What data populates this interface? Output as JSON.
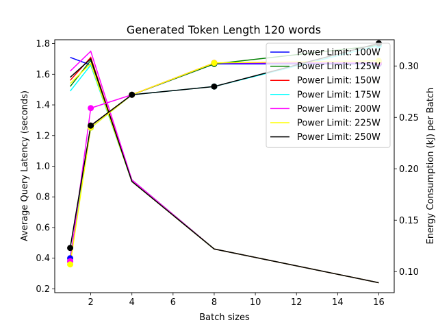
{
  "chart_data": {
    "type": "line",
    "title": "Generated Token Length 120 words",
    "xlabel": "Batch sizes",
    "ylabel": "Average Query Latency (seconds)",
    "y2label": "Energy Consumption (kJ) per Batch",
    "x": [
      1,
      2,
      4,
      8,
      16
    ],
    "xlim": [
      0.25,
      16.75
    ],
    "ylim": [
      0.175,
      1.825
    ],
    "y2lim": [
      0.0795,
      0.3255
    ],
    "xticks": [
      2,
      4,
      6,
      8,
      10,
      12,
      14,
      16
    ],
    "yticks": [
      0.2,
      0.4,
      0.6,
      0.8,
      1.0,
      1.2,
      1.4,
      1.6,
      1.8
    ],
    "y2ticks": [
      0.1,
      0.15,
      0.2,
      0.25,
      0.3
    ],
    "legend_position": "top-right",
    "grid": false,
    "series": [
      {
        "name": "Power Limit: 100W",
        "color": "#0000ff",
        "latency": [
          1.71,
          1.66,
          0.91,
          0.46,
          0.24
        ],
        "energy": [
          0.113,
          0.24,
          0.272,
          0.302,
          0.302
        ]
      },
      {
        "name": "Power Limit: 125W",
        "color": "#008000",
        "latency": [
          1.52,
          1.69,
          0.91,
          0.46,
          0.24
        ],
        "energy": [
          0.11,
          0.242,
          0.272,
          0.302,
          0.32
        ]
      },
      {
        "name": "Power Limit: 150W",
        "color": "#ff0000",
        "latency": [
          1.56,
          1.71,
          0.9,
          0.46,
          0.24
        ],
        "energy": [
          0.11,
          0.242,
          0.272,
          0.303,
          0.303
        ]
      },
      {
        "name": "Power Limit: 175W",
        "color": "#00ffff",
        "latency": [
          1.49,
          1.66,
          0.9,
          0.46,
          0.24
        ],
        "energy": [
          0.11,
          0.24,
          0.272,
          0.28,
          0.32
        ]
      },
      {
        "name": "Power Limit: 200W",
        "color": "#ff00ff",
        "latency": [
          1.62,
          1.75,
          0.91,
          0.46,
          0.24
        ],
        "energy": [
          0.11,
          0.259,
          0.272,
          0.303,
          0.303
        ]
      },
      {
        "name": "Power Limit: 225W",
        "color": "#ffff00",
        "latency": [
          1.54,
          1.67,
          0.9,
          0.46,
          0.24
        ],
        "energy": [
          0.107,
          0.24,
          0.272,
          0.303,
          0.305
        ]
      },
      {
        "name": "Power Limit: 250W",
        "color": "#000000",
        "latency": [
          1.58,
          1.7,
          0.9,
          0.46,
          0.24
        ],
        "energy": [
          0.123,
          0.242,
          0.272,
          0.28,
          0.322
        ]
      }
    ]
  }
}
